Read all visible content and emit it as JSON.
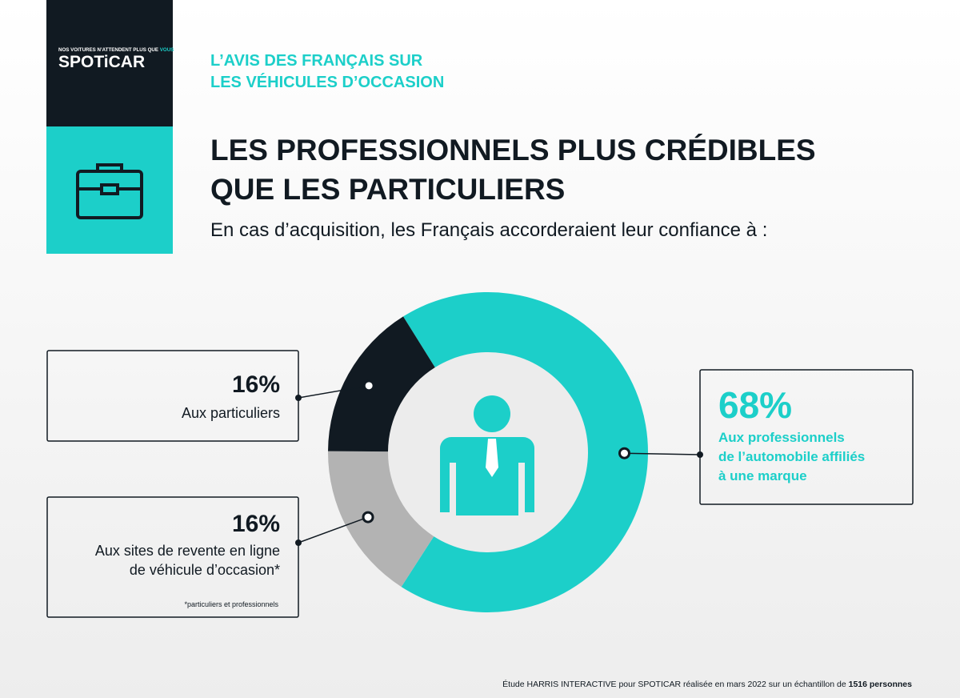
{
  "brand": {
    "tagline": "NOS VOITURES N’ATTENDENT PLUS QUE",
    "tagline_accent": "VOUS",
    "logo": "SPOTiCAR"
  },
  "header": {
    "kicker": [
      "L’AVIS DES FRANÇAIS SUR",
      "LES VÉHICULES D’OCCASION"
    ],
    "title": [
      "LES PROFESSIONNELS PLUS CRÉDIBLES",
      "QUE LES PARTICULIERS"
    ],
    "subtitle": "En cas d’acquisition, les Français accorderaient leur confiance à :"
  },
  "chart_data": {
    "type": "donut",
    "categories": [
      [
        "Aux professionnels",
        "de l’automobile affiliés",
        "à une marque"
      ],
      [
        "Aux sites de revente en ligne",
        "de véhicule d’occasion*"
      ],
      [
        "Aux particuliers"
      ]
    ],
    "values": [
      68,
      16,
      16
    ],
    "value_labels": [
      "68%",
      "16%",
      "16%"
    ],
    "colors": [
      "#1ccfc9",
      "#b3b3b3",
      "#111a22"
    ],
    "footnote": "*particuliers et professionnels"
  },
  "source": {
    "text": "Étude HARRIS INTERACTIVE pour SPOTICAR réalisée en mars 2022 sur un échantillon de",
    "emphasis": "1516 personnes"
  }
}
